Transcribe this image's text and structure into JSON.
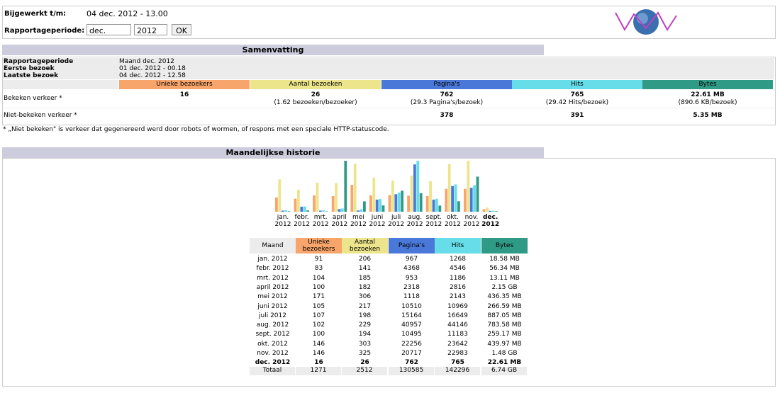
{
  "header": {
    "updated_label": "Bijgewerkt t/m:",
    "updated_value": "04 dec. 2012 - 13.00",
    "period_label": "Rapportageperiode:",
    "month": "dec.",
    "year": "2012",
    "ok": "OK"
  },
  "summary": {
    "title": "Samenvatting",
    "rows": [
      [
        "Rapportageperiode",
        "Maand dec. 2012"
      ],
      [
        "Eerste bezoek",
        "01 dec. 2012 - 00.18"
      ],
      [
        "Laatste bezoek",
        "04 dec. 2012 - 12.58"
      ]
    ],
    "columns": [
      "Unieke bezoekers",
      "Aantal bezoeken",
      "Pagina's",
      "Hits",
      "Bytes"
    ],
    "viewed": {
      "label": "Bekeken verkeer *",
      "cells": [
        [
          "16"
        ],
        [
          "26",
          "(1.62 bezoeken/bezoeker)"
        ],
        [
          "762",
          "(29.3 Pagina's/bezoek)"
        ],
        [
          "765",
          "(29.42 Hits/bezoek)"
        ],
        [
          "22.61 MB",
          "(890.6 KB/bezoek)"
        ]
      ]
    },
    "not_viewed": {
      "label": "Niet-bekeken verkeer *",
      "pages": "378",
      "hits": "391",
      "bytes": "5.35 MB"
    },
    "footnote": "* „Niet bekeken\" is verkeer dat gegenereerd werd door robots of wormen, of respons met een speciale HTTP-statuscode."
  },
  "history": {
    "title": "Maandelijkse historie",
    "colors": [
      "#f7a56a",
      "#ede58c",
      "#4a78d8",
      "#66dde8",
      "#2f9a86"
    ],
    "chart": {
      "months": [
        "jan.",
        "febr.",
        "mrt.",
        "april",
        "mei",
        "juni",
        "juli",
        "aug.",
        "sept.",
        "okt.",
        "nov.",
        "dec."
      ],
      "years": [
        "2012",
        "2012",
        "2012",
        "2012",
        "2012",
        "2012",
        "2012",
        "2012",
        "2012",
        "2012",
        "2012",
        "2012"
      ]
    },
    "columns": [
      "Maand",
      "Unieke bezoekers",
      "Aantal bezoeken",
      "Pagina's",
      "Hits",
      "Bytes"
    ],
    "rows": [
      [
        "jan. 2012",
        91,
        206,
        967,
        1268,
        {
          "value": 18.58,
          "label": "18.58 MB"
        }
      ],
      [
        "febr. 2012",
        83,
        141,
        4368,
        4546,
        {
          "value": 56.34,
          "label": "56.34 MB"
        }
      ],
      [
        "mrt. 2012",
        104,
        185,
        953,
        1186,
        {
          "value": 13.11,
          "label": "13.11 MB"
        }
      ],
      [
        "april 2012",
        100,
        182,
        2318,
        2816,
        {
          "value": 2150,
          "label": "2.15 GB"
        }
      ],
      [
        "mei 2012",
        171,
        306,
        1118,
        2143,
        {
          "value": 436.35,
          "label": "436.35 MB"
        }
      ],
      [
        "juni 2012",
        105,
        217,
        10510,
        10969,
        {
          "value": 266.59,
          "label": "266.59 MB"
        }
      ],
      [
        "juli 2012",
        107,
        198,
        15164,
        16649,
        {
          "value": 887.05,
          "label": "887.05 MB"
        }
      ],
      [
        "aug. 2012",
        102,
        229,
        40957,
        44146,
        {
          "value": 783.58,
          "label": "783.58 MB"
        }
      ],
      [
        "sept. 2012",
        100,
        194,
        10495,
        11183,
        {
          "value": 259.17,
          "label": "259.17 MB"
        }
      ],
      [
        "okt. 2012",
        146,
        303,
        22256,
        23642,
        {
          "value": 439.97,
          "label": "439.97 MB"
        }
      ],
      [
        "nov. 2012",
        146,
        325,
        20717,
        22983,
        {
          "value": 1480,
          "label": "1.48 GB"
        }
      ],
      [
        "dec. 2012",
        16,
        26,
        762,
        765,
        {
          "value": 22.61,
          "label": "22.61 MB"
        }
      ]
    ],
    "total": [
      "Totaal",
      1271,
      2512,
      130585,
      142296,
      {
        "value": 6740,
        "label": "6.74 GB"
      }
    ]
  }
}
